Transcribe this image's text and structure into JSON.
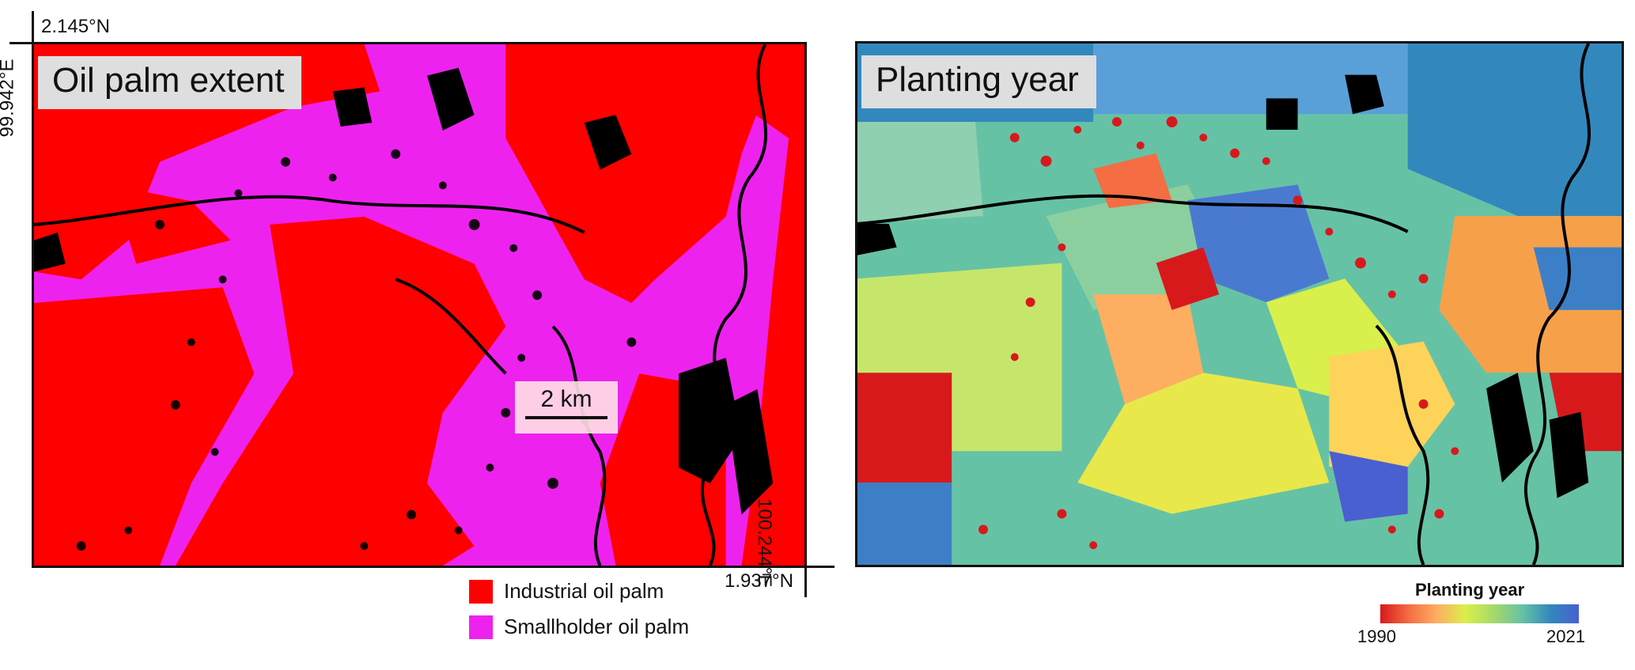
{
  "left_map": {
    "title": "Oil palm extent",
    "coords": {
      "top_lat": "2.145°N",
      "left_lon": "99.942°E",
      "right_lon": "100.244°E",
      "bottom_lat": "1.937°N"
    },
    "scalebar_label": "2 km",
    "legend": [
      {
        "label": "Industrial oil palm",
        "color": "#ff0000"
      },
      {
        "label": "Smallholder oil palm",
        "color": "#ee22ee"
      }
    ]
  },
  "right_map": {
    "title": "Planting year",
    "colorbar": {
      "title": "Planting year",
      "min_label": "1990",
      "max_label": "2021",
      "colors": [
        "#d7191c",
        "#f46d43",
        "#fdae61",
        "#d9ef4b",
        "#a6d96a",
        "#66c2a5",
        "#3288bd",
        "#4a5fd0"
      ]
    }
  },
  "colors": {
    "industrial": "#ff0000",
    "smallholder": "#ee22ee",
    "nodata": "#000000"
  }
}
